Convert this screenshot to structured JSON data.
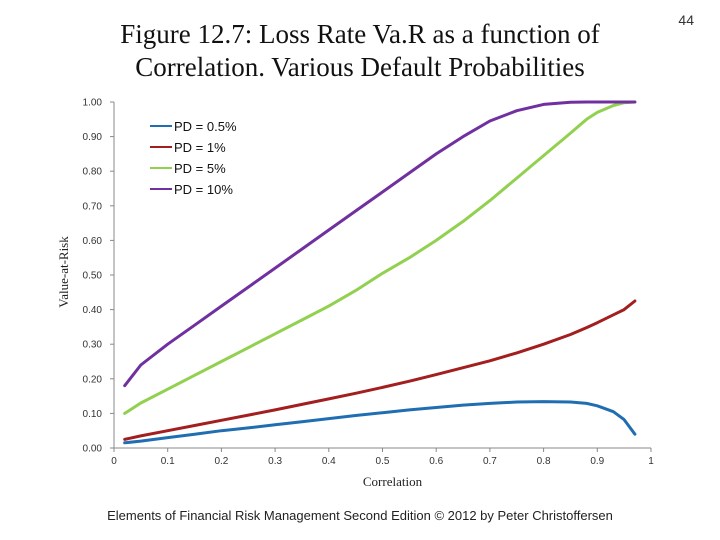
{
  "page_number": "44",
  "title_line1": "Figure 12.7: Loss Rate Va.R as a function of",
  "title_line2": "Correlation. Various Default Probabilities",
  "footer": "Elements of Financial Risk Management Second Edition © 2012  by Peter Christoffersen",
  "chart_data": {
    "type": "line",
    "xlabel": "Correlation",
    "ylabel": "Value-at-Risk",
    "xlim": [
      0,
      1
    ],
    "ylim": [
      0,
      1
    ],
    "x_ticks": [
      "0",
      "0.1",
      "0.2",
      "0.3",
      "0.4",
      "0.5",
      "0.6",
      "0.7",
      "0.8",
      "0.9",
      "1"
    ],
    "y_ticks": [
      "0.00",
      "0.10",
      "0.20",
      "0.30",
      "0.40",
      "0.50",
      "0.60",
      "0.70",
      "0.80",
      "0.90",
      "1.00"
    ],
    "grid": false,
    "legend_position": "top-left",
    "x": [
      0.02,
      0.05,
      0.1,
      0.15,
      0.2,
      0.25,
      0.3,
      0.35,
      0.4,
      0.45,
      0.5,
      0.55,
      0.6,
      0.65,
      0.7,
      0.75,
      0.8,
      0.85,
      0.88,
      0.9,
      0.93,
      0.95,
      0.97
    ],
    "series": [
      {
        "name": "PD = 0.5%",
        "color": "#1F6EB2",
        "values": [
          0.015,
          0.02,
          0.03,
          0.04,
          0.05,
          0.058,
          0.067,
          0.076,
          0.085,
          0.094,
          0.102,
          0.11,
          0.117,
          0.124,
          0.129,
          0.133,
          0.134,
          0.133,
          0.129,
          0.122,
          0.105,
          0.082,
          0.04
        ]
      },
      {
        "name": "PD = 1%",
        "color": "#A31E1E",
        "values": [
          0.025,
          0.035,
          0.05,
          0.065,
          0.08,
          0.095,
          0.11,
          0.126,
          0.142,
          0.158,
          0.175,
          0.193,
          0.212,
          0.232,
          0.252,
          0.275,
          0.3,
          0.328,
          0.348,
          0.362,
          0.385,
          0.4,
          0.425
        ]
      },
      {
        "name": "PD = 5%",
        "color": "#92D050",
        "values": [
          0.1,
          0.13,
          0.17,
          0.21,
          0.25,
          0.29,
          0.33,
          0.37,
          0.41,
          0.455,
          0.505,
          0.55,
          0.6,
          0.655,
          0.715,
          0.78,
          0.845,
          0.91,
          0.95,
          0.97,
          0.99,
          0.998,
          1.0
        ]
      },
      {
        "name": "PD = 10%",
        "color": "#7030A0",
        "values": [
          0.18,
          0.24,
          0.3,
          0.355,
          0.41,
          0.465,
          0.52,
          0.575,
          0.63,
          0.685,
          0.74,
          0.795,
          0.85,
          0.9,
          0.945,
          0.975,
          0.993,
          0.999,
          1.0,
          1.0,
          1.0,
          1.0,
          1.0
        ]
      }
    ]
  }
}
